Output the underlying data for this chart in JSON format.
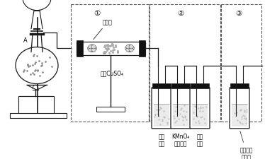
{
  "bg_color": "#ffffff",
  "line_color": "#1a1a1a",
  "label1": "①",
  "label2": "②",
  "label3": "③",
  "text_mianhua": "棉花团",
  "text_wushuicuso4": "无水CuSO₄",
  "bottle_labels": [
    "品红\n溶液",
    "KMnO₄\n酸性溶液",
    "品红\n溶液",
    "足量澄清\n石灰水"
  ],
  "font_size_small": 5.5,
  "font_size_med": 6.5,
  "font_size_circle": 7.5
}
